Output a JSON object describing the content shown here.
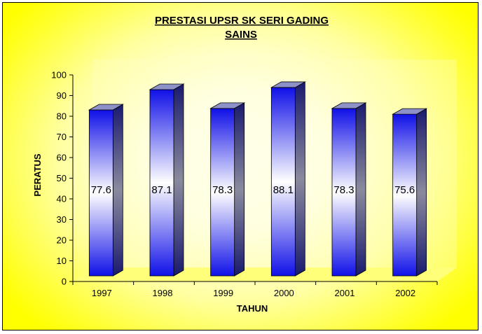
{
  "chart_data": {
    "type": "bar",
    "title": "PRESTASI UPSR SK SERI GADING",
    "subtitle": "SAINS",
    "xlabel": "TAHUN",
    "ylabel": "PERATUS",
    "categories": [
      "1997",
      "1998",
      "1999",
      "2000",
      "2001",
      "2002"
    ],
    "values": [
      77.6,
      87.1,
      78.3,
      88.1,
      78.3,
      75.6
    ],
    "data_labels": [
      "77.6",
      "87.1",
      "78.3",
      "88.1",
      "78.3",
      "75.6"
    ],
    "ylim": [
      0,
      100
    ],
    "yticks": [
      "0",
      "10",
      "20",
      "30",
      "40",
      "50",
      "60",
      "70",
      "80",
      "90",
      "100"
    ],
    "grid": false,
    "bar_style": "3d-cylinder-gradient",
    "colors": {
      "bar_edge": "#1010e8",
      "bar_center": "#ffffff",
      "bar_side": "#1a1a66",
      "bar_top": "#8e90c8",
      "background_outer": "#ffff00",
      "floor": "#ffff7a"
    }
  }
}
